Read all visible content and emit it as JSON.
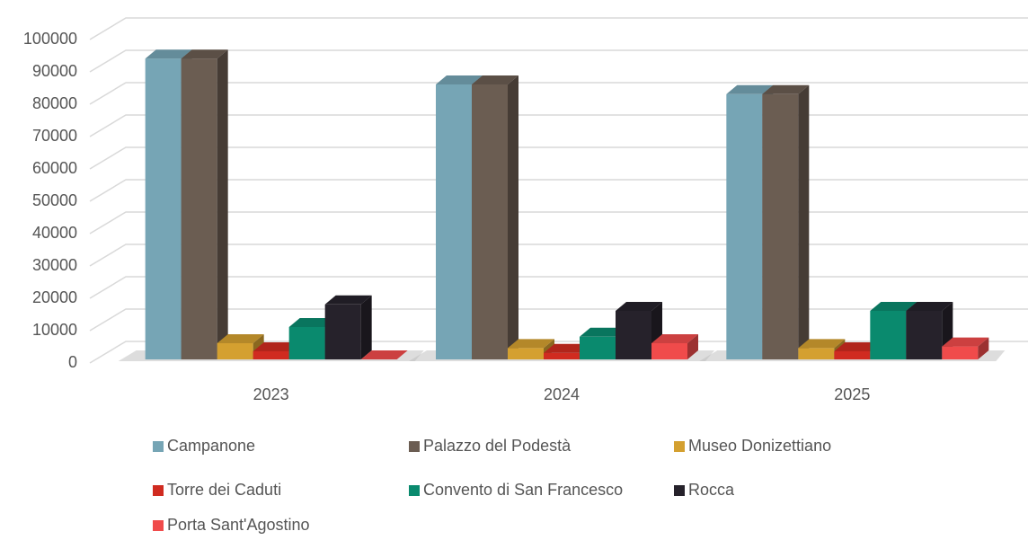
{
  "chart_data": {
    "type": "bar",
    "categories": [
      "2023",
      "2024",
      "2025"
    ],
    "series": [
      {
        "name": "Campanone",
        "color": "#76a5b5",
        "values": [
          93000,
          85000,
          82000
        ]
      },
      {
        "name": "Palazzo del Podestà",
        "color": "#6b5d52",
        "values": [
          93000,
          85000,
          82000
        ]
      },
      {
        "name": "Museo Donizettiano",
        "color": "#d4a030",
        "values": [
          5000,
          3500,
          3500
        ]
      },
      {
        "name": "Torre dei Caduti",
        "color": "#d02b20",
        "values": [
          2500,
          2000,
          2500
        ]
      },
      {
        "name": "Convento di San Francesco",
        "color": "#0a8a6e",
        "values": [
          10000,
          7000,
          15000
        ]
      },
      {
        "name": "Rocca",
        "color": "#26222b",
        "values": [
          17000,
          15000,
          15000
        ]
      },
      {
        "name": "Porta Sant'Agostino",
        "color": "#f04b4b",
        "values": [
          0,
          5000,
          4000
        ]
      }
    ],
    "ylim": [
      0,
      100000
    ],
    "yticks": [
      0,
      10000,
      20000,
      30000,
      40000,
      50000,
      60000,
      70000,
      80000,
      90000,
      100000
    ],
    "grid": true
  }
}
